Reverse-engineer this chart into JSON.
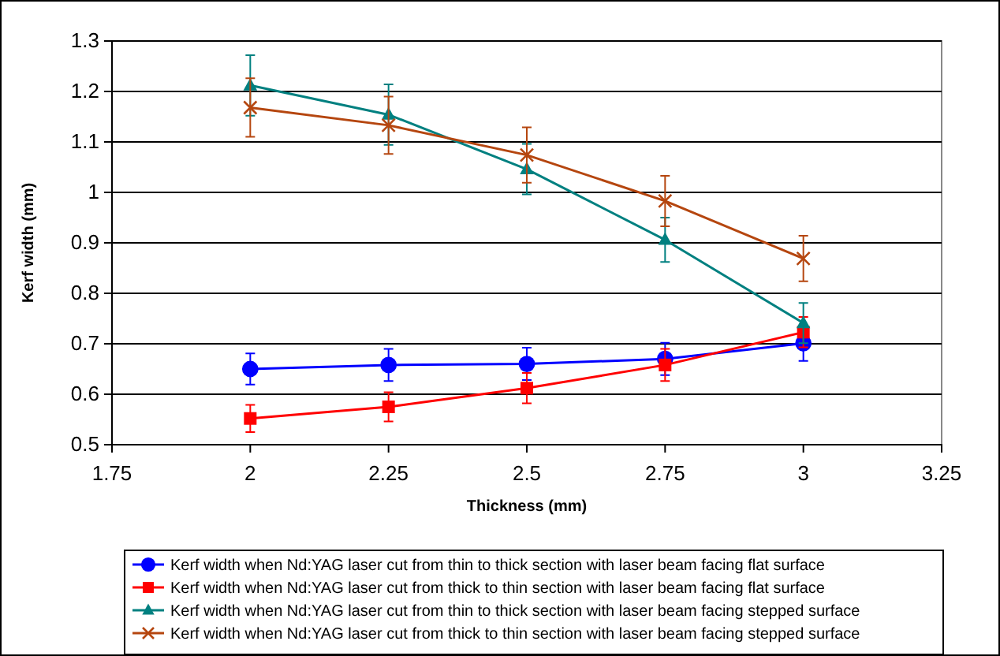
{
  "chart_data": {
    "type": "line",
    "xlabel": "Thickness (mm)",
    "ylabel": "Kerf width (mm)",
    "x": [
      2,
      2.25,
      2.5,
      2.75,
      3
    ],
    "xlim": [
      1.75,
      3.25
    ],
    "xticks": [
      1.75,
      2,
      2.25,
      2.5,
      2.75,
      3,
      3.25
    ],
    "ylim": [
      0.5,
      1.3
    ],
    "yticks": [
      {
        "value": 0.5,
        "label": "0.5"
      },
      {
        "value": 0.6,
        "label": "0.6"
      },
      {
        "value": 0.7,
        "label": "0.7"
      },
      {
        "value": 0.8,
        "label": "0.8"
      },
      {
        "value": 0.9,
        "label": "0.9"
      },
      {
        "value": 1,
        "label": "1"
      },
      {
        "value": 1.1,
        "label": "1.1"
      },
      {
        "value": 1.2,
        "label": "1.2"
      },
      {
        "value": 1.3,
        "label": "1.3"
      }
    ],
    "grid": "y",
    "legend": "bottom",
    "line_style": "solid",
    "series": [
      {
        "name": "Kerf width when Nd:YAG laser cut from thin to thick section with laser beam facing flat surface",
        "color": "#0000ff",
        "marker": "circle",
        "values": [
          0.65,
          0.658,
          0.66,
          0.67,
          0.701
        ],
        "errors": [
          0.031,
          0.032,
          0.032,
          0.032,
          0.035
        ]
      },
      {
        "name": "Kerf width when Nd:YAG laser cut from thick to thin section with laser beam facing flat surface",
        "color": "#ff0000",
        "marker": "square",
        "values": [
          0.552,
          0.575,
          0.612,
          0.658,
          0.723
        ],
        "errors": [
          0.027,
          0.029,
          0.03,
          0.032,
          0.03
        ]
      },
      {
        "name": "Kerf width when Nd:YAG laser cut from thin to thick section with laser beam facing stepped surface",
        "color": "#008080",
        "marker": "triangle",
        "values": [
          1.212,
          1.154,
          1.046,
          0.906,
          0.741
        ],
        "errors": [
          0.06,
          0.06,
          0.05,
          0.044,
          0.04
        ]
      },
      {
        "name": "Kerf width when Nd:YAG laser cut from thick to thin section with laser beam facing stepped surface",
        "color": "#b5460f",
        "marker": "cross",
        "values": [
          1.168,
          1.133,
          1.074,
          0.983,
          0.869
        ],
        "errors": [
          0.058,
          0.057,
          0.055,
          0.05,
          0.045
        ]
      }
    ]
  }
}
